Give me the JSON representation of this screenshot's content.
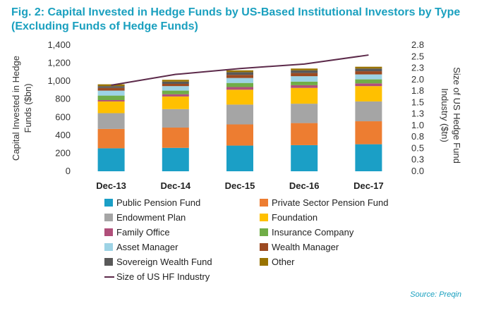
{
  "title_line1": "Fig. 2: Capital Invested in Hedge Funds by US-Based Institutional Investors by Type",
  "title_line2": "(Excluding Funds of Hedge Funds)",
  "source": "Source: Preqin",
  "chart_data": {
    "type": "bar",
    "stacked": true,
    "categories": [
      "Dec-13",
      "Dec-14",
      "Dec-15",
      "Dec-16",
      "Dec-17"
    ],
    "ylabel": "Capital Invested in Hedge Funds ($bn)",
    "ylim": [
      0,
      1400
    ],
    "yticks": [
      "0",
      "200",
      "400",
      "600",
      "800",
      "1,000",
      "1,200",
      "1,400"
    ],
    "y2label": "Size of US Hedge Fund Industry ($tn)",
    "y2lim": [
      0,
      2.8
    ],
    "y2ticks": [
      "0.0",
      "0.3",
      "0.5",
      "0.8",
      "1.0",
      "1.3",
      "1.5",
      "1.8",
      "2.0",
      "2.3",
      "2.5",
      "2.8"
    ],
    "series": [
      {
        "name": "Public Pension Fund",
        "color": "#1b9fc6",
        "values": [
          255,
          260,
          285,
          290,
          300
        ]
      },
      {
        "name": "Private Sector Pension Fund",
        "color": "#ed7d31",
        "values": [
          215,
          225,
          235,
          245,
          255
        ]
      },
      {
        "name": "Endowment Plan",
        "color": "#a5a5a5",
        "values": [
          175,
          205,
          220,
          215,
          220
        ]
      },
      {
        "name": "Foundation",
        "color": "#ffc000",
        "values": [
          130,
          140,
          165,
          175,
          170
        ]
      },
      {
        "name": "Family Office",
        "color": "#b04f7a",
        "values": [
          15,
          25,
          30,
          30,
          30
        ]
      },
      {
        "name": "Insurance Company",
        "color": "#70ad47",
        "values": [
          50,
          40,
          45,
          40,
          45
        ]
      },
      {
        "name": "Asset Manager",
        "color": "#9dd3e5",
        "values": [
          55,
          50,
          55,
          60,
          55
        ]
      },
      {
        "name": "Wealth Manager",
        "color": "#9c4a21",
        "values": [
          30,
          25,
          35,
          35,
          35
        ]
      },
      {
        "name": "Sovereign Wealth Fund",
        "color": "#595959",
        "values": [
          20,
          25,
          30,
          30,
          30
        ]
      },
      {
        "name": "Other",
        "color": "#997300",
        "values": [
          20,
          20,
          20,
          20,
          20
        ]
      }
    ],
    "line": {
      "name": "Size of US HF Industry",
      "color": "#5c2a4a",
      "values": [
        1.91,
        2.15,
        2.28,
        2.38,
        2.58
      ]
    }
  }
}
